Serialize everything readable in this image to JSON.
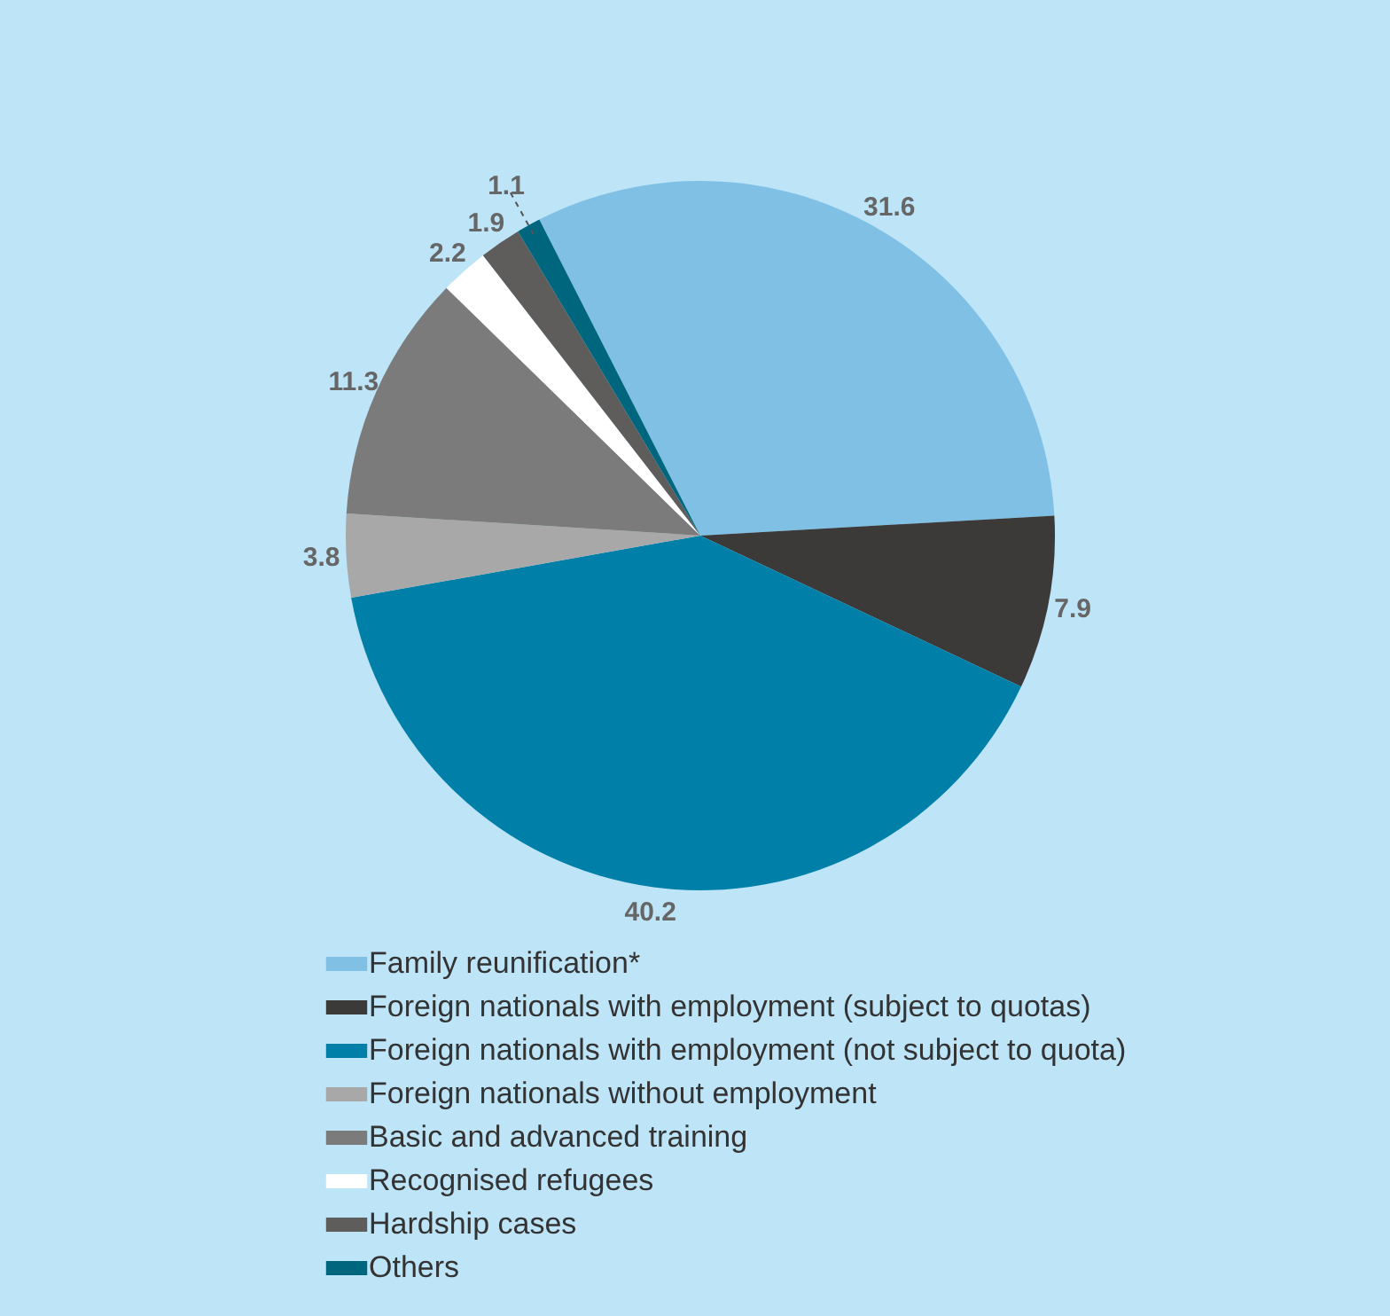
{
  "chart_data": {
    "type": "pie",
    "categories": [
      "Family reunification*",
      "Foreign nationals with employment (subject to quotas)",
      "Foreign nationals with employment (not subject to quota)",
      "Foreign nationals without employment",
      "Basic and advanced training",
      "Recognised refugees",
      "Hardship cases",
      "Others"
    ],
    "values": [
      31.6,
      7.9,
      40.2,
      3.8,
      11.3,
      2.2,
      1.9,
      1.1
    ],
    "colors": [
      "#80c0e4",
      "#3b3a39",
      "#0080a9",
      "#a8a8a8",
      "#7b7b7b",
      "#ffffff",
      "#5f5d5b",
      "#00667e"
    ],
    "data_labels": true,
    "legend": "bottom"
  }
}
